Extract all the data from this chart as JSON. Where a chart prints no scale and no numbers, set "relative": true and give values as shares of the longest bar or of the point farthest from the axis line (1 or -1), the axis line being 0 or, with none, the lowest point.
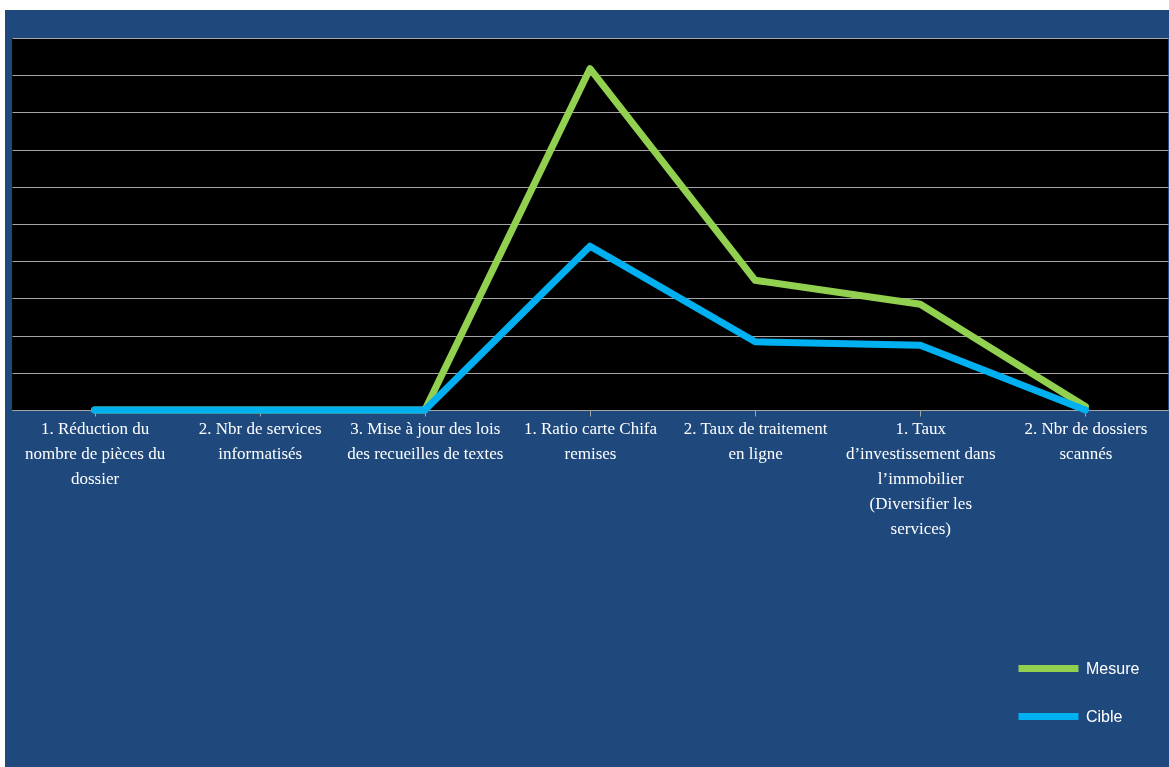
{
  "chart_data": {
    "type": "line",
    "relative": true,
    "categories": [
      "1. Réduction du nombre de pièces du dossier",
      "2. Nbr de services informatisés",
      "3. Mise à jour des lois des recueilles de textes",
      "1. Ratio carte Chifa remises",
      "2. Taux de traitement en ligne",
      "1. Taux d’investissement dans l’immobilier (Diversifier les services)",
      "2. Nbr de dossiers scannés"
    ],
    "series": [
      {
        "name": "Mesure",
        "color": "#92d050",
        "values": [
          0,
          0,
          0,
          1,
          0.38,
          0.31,
          0.01
        ]
      },
      {
        "name": "Cible",
        "color": "#00b0f0",
        "values": [
          0,
          0,
          0,
          0.48,
          0.2,
          0.19,
          0
        ]
      }
    ],
    "grid": true,
    "legend": "bottom right",
    "marker": "none",
    "line_style": "solid"
  }
}
